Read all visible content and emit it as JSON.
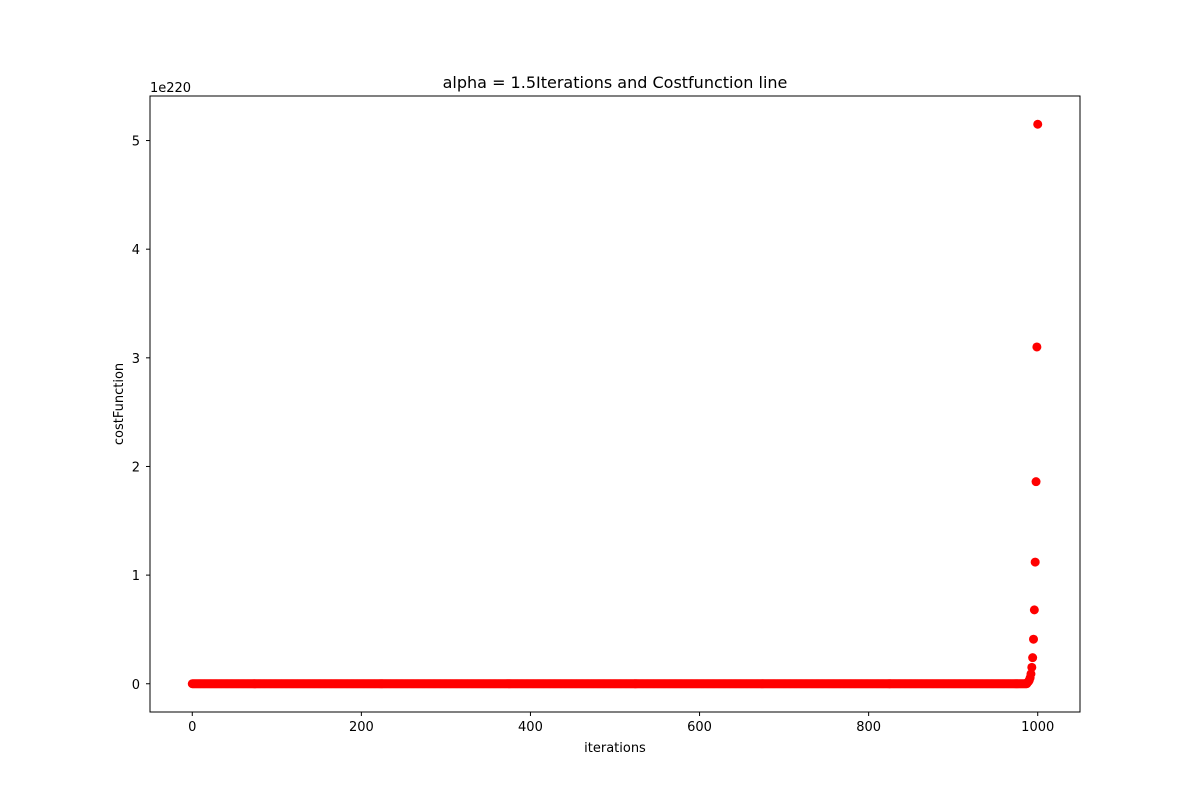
{
  "chart_data": {
    "type": "scatter",
    "title": "alpha = 1.5Iterations and Costfunction line",
    "xlabel": "iterations",
    "ylabel": "costFunction",
    "y_offset_label": "1e220",
    "xlim": [
      -50,
      1050
    ],
    "ylim": [
      -0.26,
      5.41
    ],
    "xticks": [
      0,
      200,
      400,
      600,
      800,
      1000
    ],
    "xtick_labels": [
      "0",
      "200",
      "400",
      "600",
      "800",
      "1000"
    ],
    "yticks": [
      0,
      1,
      2,
      3,
      4,
      5
    ],
    "ytick_labels": [
      "0",
      "1",
      "2",
      "3",
      "4",
      "5"
    ],
    "marker_color": "#ff0000",
    "grid": false,
    "series": [
      {
        "name": "costFunction",
        "description": "flat near zero for iterations 0-988, then geometric growth (~x1.66 per step) up to 5.15e220 at iteration 1000",
        "x_start": 0,
        "x_end": 1000,
        "flat_value": 0,
        "growth_points": [
          {
            "x": 988,
            "y": 0.012
          },
          {
            "x": 989,
            "y": 0.02
          },
          {
            "x": 990,
            "y": 0.033
          },
          {
            "x": 991,
            "y": 0.055
          },
          {
            "x": 992,
            "y": 0.091
          },
          {
            "x": 993,
            "y": 0.151
          },
          {
            "x": 994,
            "y": 0.24
          },
          {
            "x": 995,
            "y": 0.41
          },
          {
            "x": 996,
            "y": 0.68
          },
          {
            "x": 997,
            "y": 1.12
          },
          {
            "x": 998,
            "y": 1.86
          },
          {
            "x": 999,
            "y": 3.1
          },
          {
            "x": 1000,
            "y": 5.15
          }
        ]
      }
    ]
  }
}
